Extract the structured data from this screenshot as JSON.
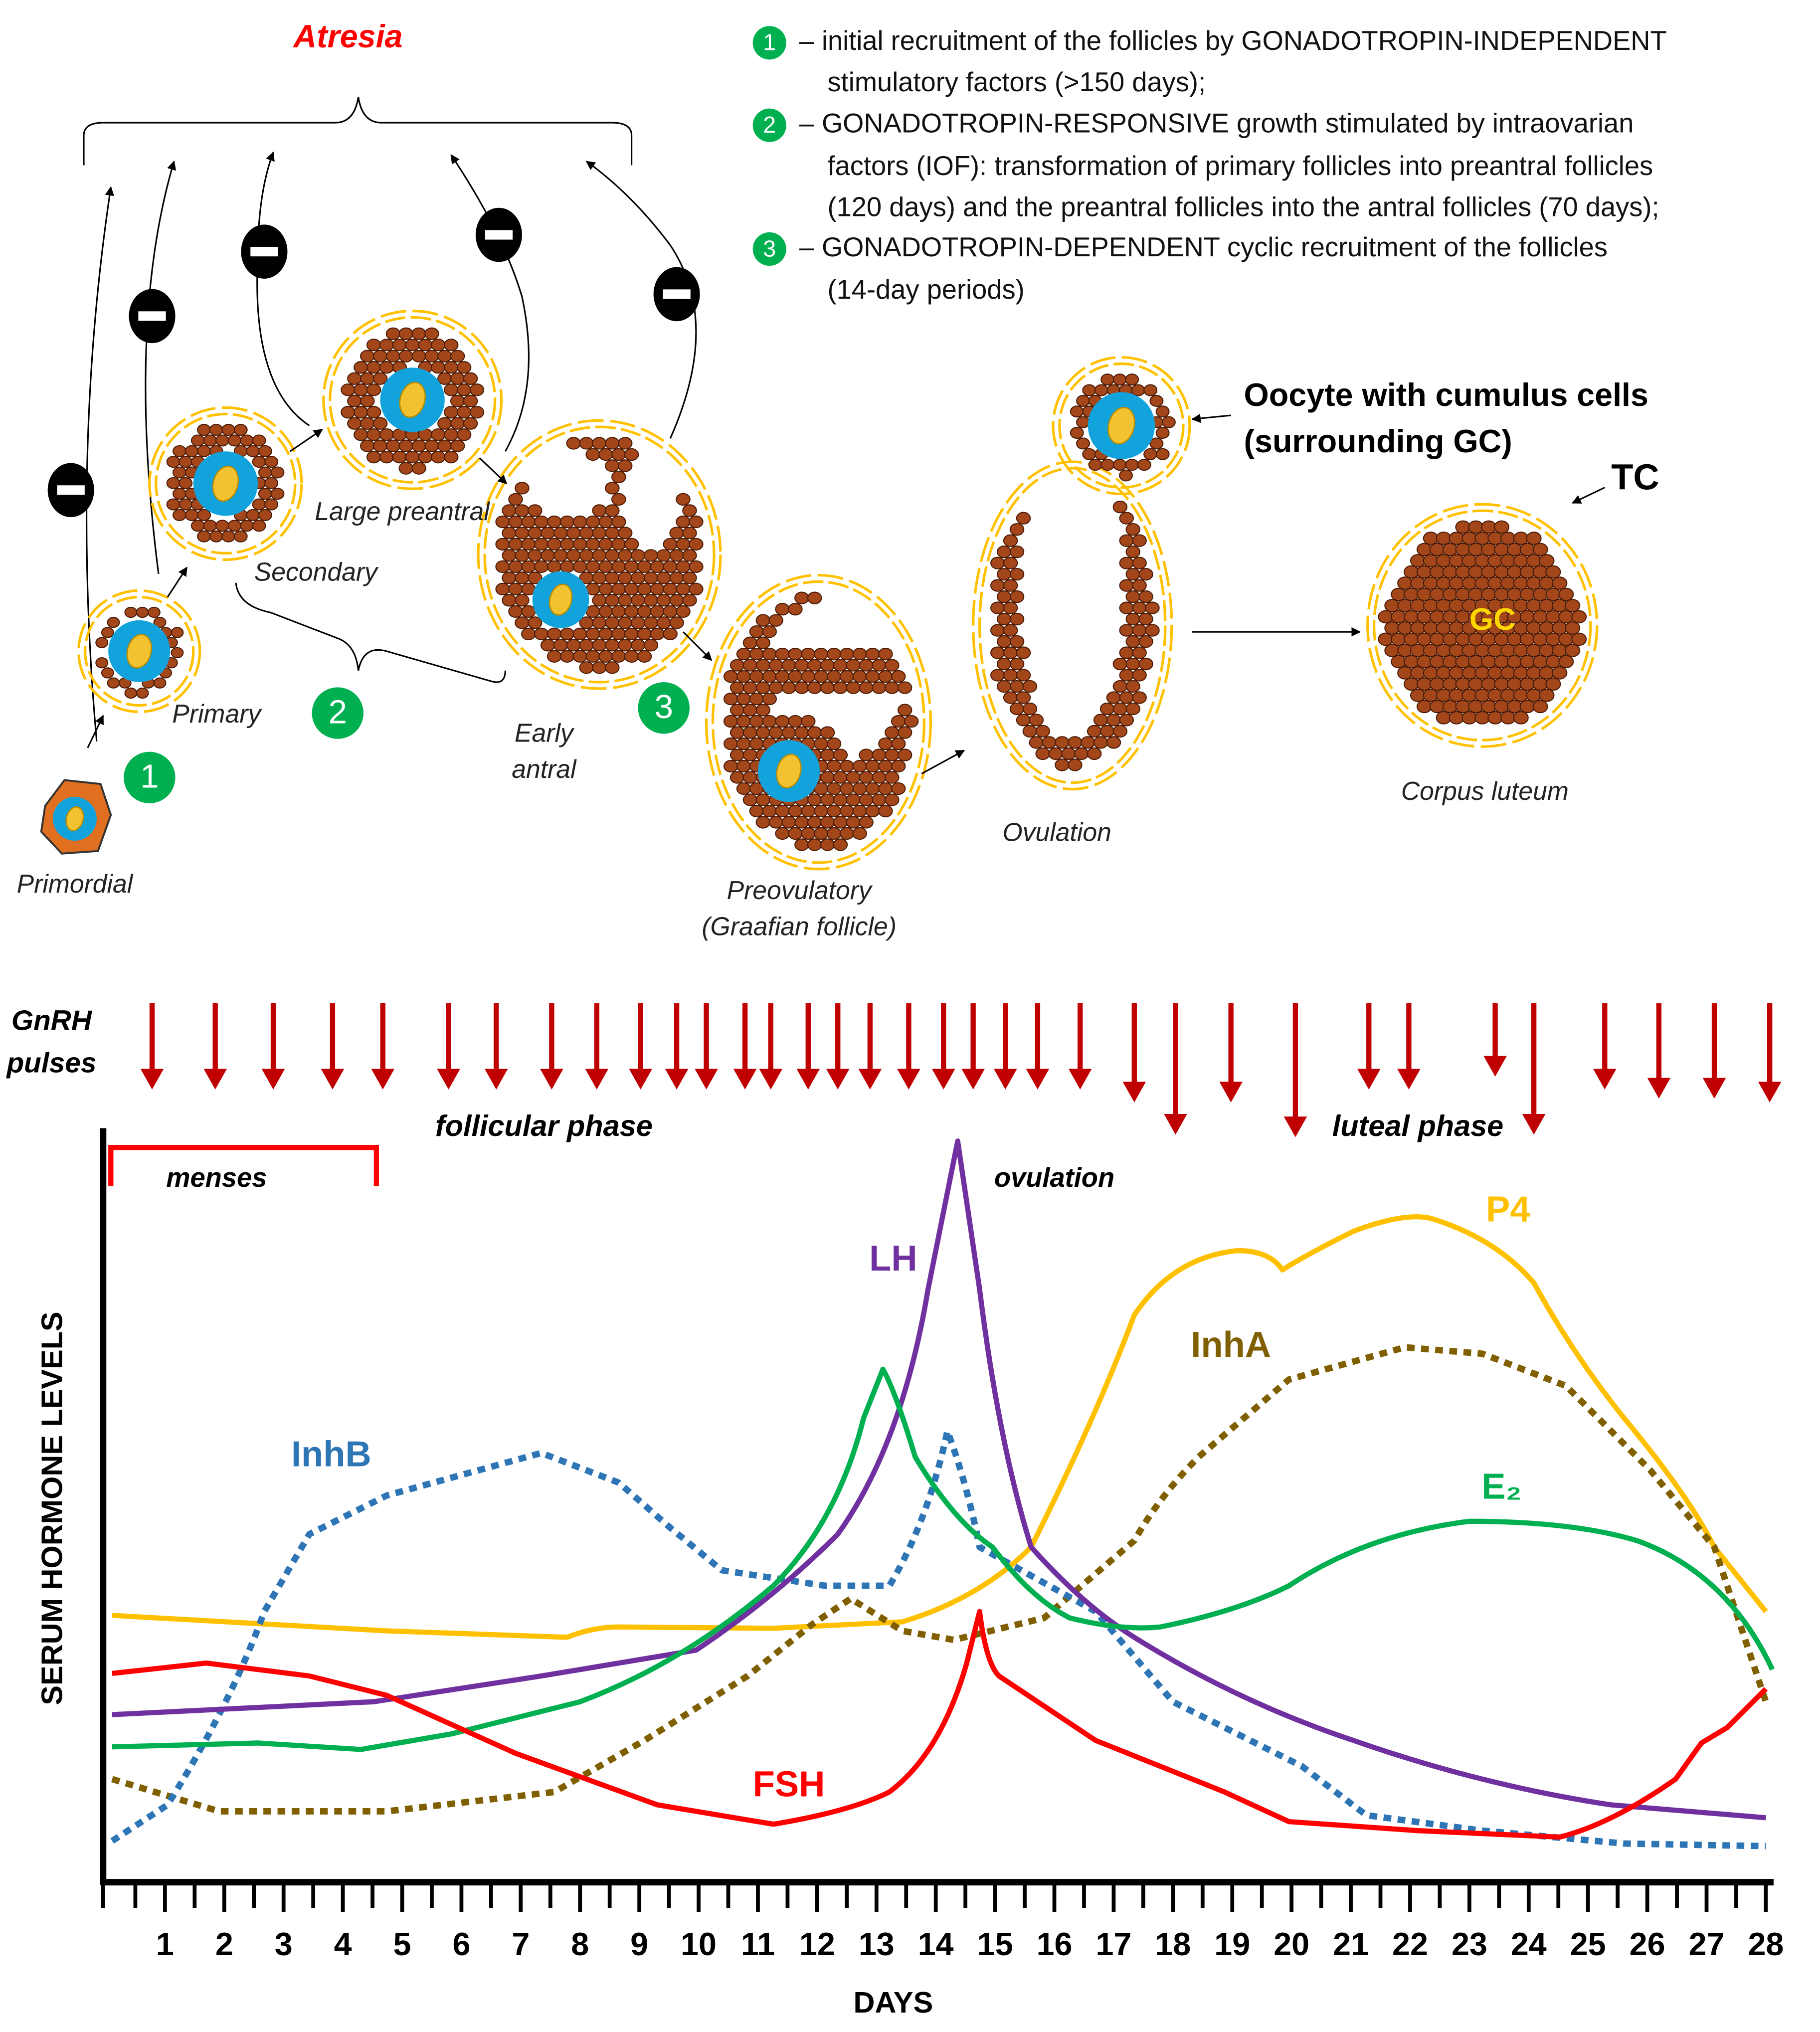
{
  "diagram": {
    "atresia": "Atresia",
    "legend": [
      {
        "number": "1",
        "lines": [
          "– initial recruitment of the follicles by GONADOTROPIN-INDEPENDENT",
          "stimulatory factors (>150 days);"
        ]
      },
      {
        "number": "2",
        "lines": [
          "– GONADOTROPIN-RESPONSIVE growth stimulated by intraovarian",
          "factors (IOF): transformation of primary follicles into preantral follicles",
          "(120 days) and the preantral follicles into the antral follicles (70 days);"
        ]
      },
      {
        "number": "3",
        "lines": [
          "– GONADOTROPIN-DEPENDENT cyclic recruitment of the follicles",
          "(14-day periods)"
        ]
      }
    ],
    "stages": {
      "primordial": [
        "Primordial"
      ],
      "primary": [
        "Primary"
      ],
      "secondary": [
        "Secondary"
      ],
      "large_preantral": [
        "Large preantral"
      ],
      "early_antral": [
        "Early",
        "antral"
      ],
      "preovulatory": [
        "Preovulatory",
        "(Graafian follicle)"
      ],
      "ovulation": [
        "Ovulation"
      ],
      "corpus_luteum": [
        "Corpus luteum"
      ]
    },
    "step_markers": [
      "1",
      "2",
      "3"
    ],
    "oocyte_label": [
      "Oocyte with cumulus cells",
      "(surrounding GC)"
    ],
    "tc_label": "TC",
    "gc_label": "GC"
  },
  "chart": {
    "gnrh_label": [
      "GnRH",
      "pulses"
    ],
    "follicular_phase": "follicular phase",
    "luteal_phase": "luteal phase",
    "menses": "menses",
    "ovulation": "ovulation",
    "y_axis_label": "SERUM HORMONE LEVELS",
    "x_axis_label": "DAYS",
    "days": [
      1,
      2,
      3,
      4,
      5,
      6,
      7,
      8,
      9,
      10,
      11,
      12,
      13,
      14,
      15,
      16,
      17,
      18,
      19,
      20,
      21,
      22,
      23,
      24,
      25,
      26,
      27,
      28
    ],
    "hormones": [
      {
        "name": "P4",
        "color": "#ffc000"
      },
      {
        "name": "InhA",
        "color": "#7f5f00"
      },
      {
        "name": "InhB",
        "color": "#2e75b6"
      },
      {
        "name": "LH",
        "color": "#7030a0"
      },
      {
        "name": "E₂",
        "color": "#00b050"
      },
      {
        "name": "FSH",
        "color": "#ff0000"
      }
    ]
  }
}
